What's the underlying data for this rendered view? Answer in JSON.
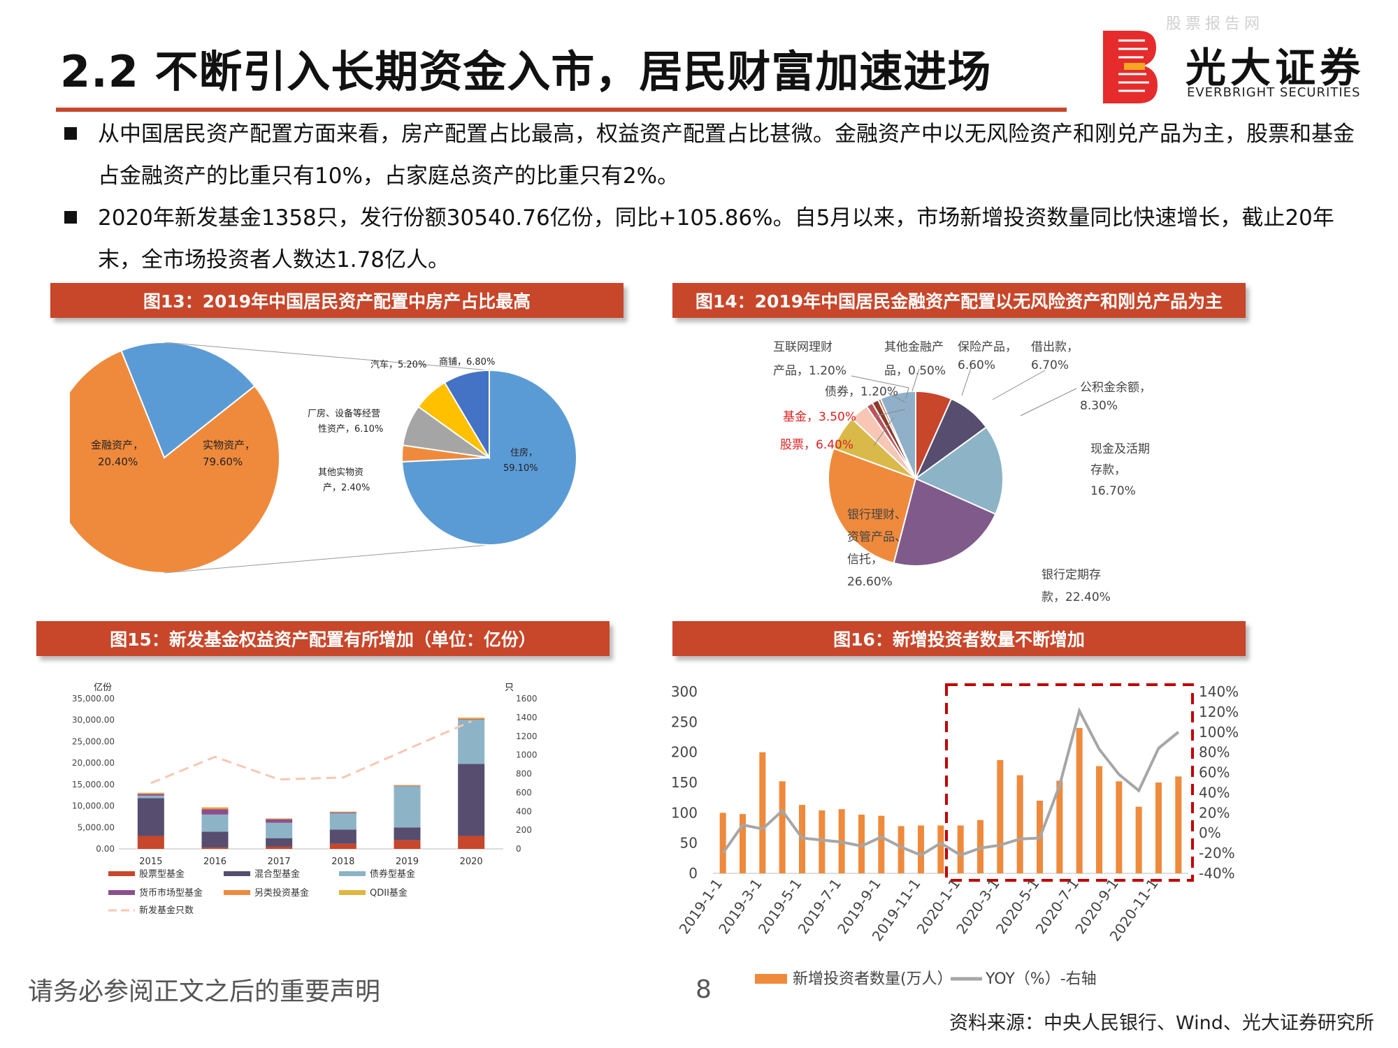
{
  "header": {
    "watermark": "股票报告网",
    "title": "2.2 不断引入长期资金入市，居民财富加速进场",
    "brand_cn": "光大证券",
    "brand_en": "EVERBRIGHT SECURITIES"
  },
  "bullets": [
    "从中国居民资产配置方面来看，房产配置占比最高，权益资产配置占比甚微。金融资产中以无风险资产和刚兑产品为主，股票和基金占金融资产的比重只有10%，占家庭总资产的比重只有2%。",
    "2020年新发基金1358只，发行份额30540.76亿份，同比+105.86%。自5月以来，市场新增投资数量同比快速增长，截止20年末，全市场投资者人数达1.78亿人。"
  ],
  "figures": {
    "fig13": "图13：2019年中国居民资产配置中房产占比最高",
    "fig14": "图14：2019年中国居民金融资产配置以无风险资产和刚兑产品为主",
    "fig15": "图15：新发基金权益资产配置有所增加（单位：亿份）",
    "fig16": "图16：新增投资者数量不断增加"
  },
  "footer": {
    "disclaimer": "请务必参阅正文之后的重要声明",
    "page": "8",
    "source": "资料来源：中央人民银行、Wind、光大证券研究所"
  },
  "colors": {
    "accent": "#c8462a",
    "orange": "#ef8a3c",
    "blue": "#5b9bd5",
    "gray": "#a5a5a5",
    "yellow": "#ffc000",
    "navy": "#4472c4",
    "dark_purple": "#574d6e",
    "light_blue": "#8db3c7",
    "purple": "#7f5a8a",
    "dash_red": "#c00000"
  },
  "chart_data": [
    {
      "type": "pie",
      "id": "fig13-main",
      "slices": [
        {
          "label": "实物资产，",
          "value": 79.6,
          "value_label": "79.60%"
        },
        {
          "label": "金融资产，",
          "value": 20.4,
          "value_label": "20.40%"
        }
      ]
    },
    {
      "type": "pie",
      "id": "fig13-breakdown",
      "slices": [
        {
          "label": "住房，",
          "value": 59.1,
          "value_label": "59.10%"
        },
        {
          "label": "其他实物资产，",
          "value": 2.4,
          "value_label": "2.40%"
        },
        {
          "label": "厂房、设备等经营性资产，",
          "value": 6.1,
          "value_label": "6.10%"
        },
        {
          "label": "汽车，",
          "value": 5.2,
          "value_label": "5.20%"
        },
        {
          "label": "商铺，",
          "value": 6.8,
          "value_label": "6.80%"
        }
      ]
    },
    {
      "type": "pie",
      "id": "fig14",
      "slices": [
        {
          "label": "借出款，",
          "value": 6.7,
          "value_label": "6.70%"
        },
        {
          "label": "公积金余额，",
          "value": 8.3,
          "value_label": "8.30%"
        },
        {
          "label": "现金及活期存款，",
          "value": 16.7,
          "value_label": "16.70%"
        },
        {
          "label": "银行定期存款，",
          "value": 22.4,
          "value_label": "22.40%"
        },
        {
          "label": "银行理财、资管产品、信托，",
          "value": 26.6,
          "value_label": "26.60%"
        },
        {
          "label": "股票，",
          "value": 6.4,
          "value_label": "6.40%"
        },
        {
          "label": "基金，",
          "value": 3.5,
          "value_label": "3.50%"
        },
        {
          "label": "债券，",
          "value": 1.2,
          "value_label": "1.20%"
        },
        {
          "label": "互联网理财产品，",
          "value": 1.2,
          "value_label": "1.20%"
        },
        {
          "label": "其他金融产品，",
          "value": 0.5,
          "value_label": "0.50%"
        },
        {
          "label": "保险产品，",
          "value": 6.6,
          "value_label": "6.60%"
        }
      ]
    },
    {
      "type": "bar",
      "id": "fig15",
      "stacked": true,
      "categories": [
        "2015",
        "2016",
        "2017",
        "2018",
        "2019",
        "2020"
      ],
      "yunit_left": "亿份",
      "yunit_right": "只",
      "ylim_left": [
        0,
        35000
      ],
      "ylim_right": [
        0,
        1600
      ],
      "yticks_left": [
        "0.00",
        "5,000.00",
        "10,000.00",
        "15,000.00",
        "20,000.00",
        "25,000.00",
        "30,000.00",
        "35,000.00"
      ],
      "yticks_right": [
        "0",
        "200",
        "400",
        "600",
        "800",
        "1000",
        "1200",
        "1400",
        "1600"
      ],
      "series": [
        {
          "name": "股票型基金",
          "values": [
            3000,
            300,
            500,
            1200,
            2000,
            3000
          ]
        },
        {
          "name": "混合型基金",
          "values": [
            8800,
            3700,
            2000,
            3300,
            3000,
            16800
          ]
        },
        {
          "name": "债券型基金",
          "values": [
            600,
            4000,
            3600,
            3800,
            9600,
            10300
          ]
        },
        {
          "name": "货币市场型基金",
          "values": [
            400,
            1200,
            800,
            200,
            100,
            100
          ]
        },
        {
          "name": "另类投资基金",
          "values": [
            100,
            300,
            100,
            100,
            100,
            200
          ]
        },
        {
          "name": "QDII基金",
          "values": [
            200,
            200,
            100,
            100,
            100,
            200
          ]
        }
      ],
      "line": {
        "name": "新发基金只数",
        "values": [
          700,
          980,
          740,
          760,
          1060,
          1358
        ]
      }
    },
    {
      "type": "bar",
      "id": "fig16",
      "x": [
        "2019-1",
        "2019-2",
        "2019-3",
        "2019-4",
        "2019-5",
        "2019-6",
        "2019-7",
        "2019-8",
        "2019-9",
        "2019-10",
        "2019-11",
        "2019-12",
        "2020-1",
        "2020-2",
        "2020-3",
        "2020-4",
        "2020-5",
        "2020-6",
        "2020-7",
        "2020-8",
        "2020-9",
        "2020-10",
        "2020-11",
        "2020-12"
      ],
      "xtick_labels": [
        "2019-1-1",
        "2019-3-1",
        "2019-5-1",
        "2019-7-1",
        "2019-9-1",
        "2019-11-1",
        "2020-1-1",
        "2020-3-1",
        "2020-5-1",
        "2020-7-1",
        "2020-9-1",
        "2020-11-1"
      ],
      "ylim_left": [
        0,
        300
      ],
      "ylim_right": [
        -40,
        140
      ],
      "yticks_left": [
        "0",
        "50",
        "100",
        "150",
        "200",
        "250",
        "300"
      ],
      "yticks_right": [
        "-40%",
        "-20%",
        "0%",
        "20%",
        "40%",
        "60%",
        "80%",
        "100%",
        "120%",
        "140%"
      ],
      "bars": {
        "name": "新增投资者数量(万人）",
        "values": [
          100,
          98,
          200,
          152,
          113,
          104,
          106,
          97,
          95,
          78,
          79,
          79,
          79,
          88,
          187,
          162,
          120,
          153,
          240,
          177,
          152,
          110,
          150,
          160
        ]
      },
      "line": {
        "name": "YOY（%）-右轴",
        "values": [
          -20,
          8,
          4,
          22,
          -5,
          -7,
          -9,
          -13,
          -4,
          -14,
          -22,
          -10,
          -22,
          -15,
          -12,
          -6,
          -5,
          47,
          121,
          83,
          58,
          42,
          84,
          100
        ]
      },
      "highlight_range": [
        "2020-1",
        "2020-12"
      ]
    }
  ]
}
